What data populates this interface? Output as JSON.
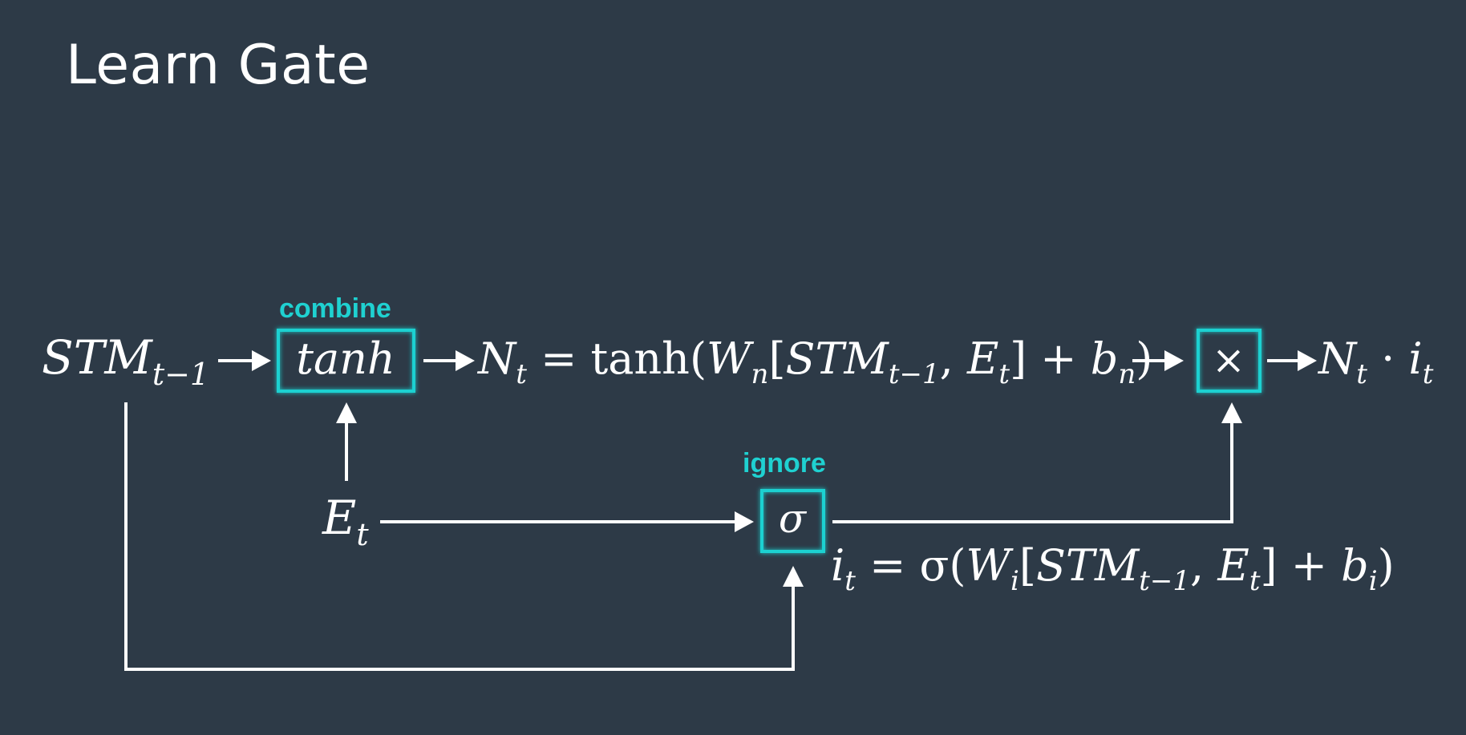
{
  "title": "Learn Gate",
  "accent_color": "#1fd1d1",
  "background_color": "#2d3a47",
  "nodes": {
    "stm_input": {
      "main": "STM",
      "sub": "t−1"
    },
    "tanh_box": {
      "label": "combine",
      "text": "tanh"
    },
    "event_input": {
      "main": "E",
      "sub": "t"
    },
    "sigma_box": {
      "label": "ignore",
      "text": "σ"
    },
    "multiply_box": {
      "text": "×"
    }
  },
  "equations": {
    "n_t": {
      "lhs": "N",
      "lhs_sub": "t",
      "eq": " = tanh(",
      "w": "W",
      "w_sub": "n",
      "bracket_open": "[",
      "stm": "STM",
      "stm_sub": "t−1",
      "comma": ", ",
      "e": "E",
      "e_sub": "t",
      "bracket_close": "] + ",
      "b": "b",
      "b_sub": "n",
      "close": ")"
    },
    "i_t": {
      "lhs": "i",
      "lhs_sub": "t",
      "eq": " = σ(",
      "w": "W",
      "w_sub": "i",
      "bracket_open": "[",
      "stm": "STM",
      "stm_sub": "t−1",
      "comma": ", ",
      "e": "E",
      "e_sub": "t",
      "bracket_close": "] + ",
      "b": "b",
      "b_sub": "i",
      "close": ")"
    },
    "output": {
      "n": "N",
      "n_sub": "t",
      "dot": " · ",
      "i": "i",
      "i_sub": "t"
    }
  }
}
